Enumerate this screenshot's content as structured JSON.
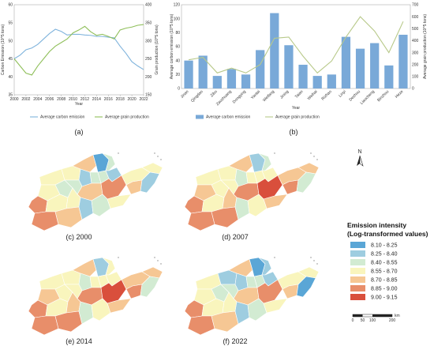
{
  "chart_data": [
    {
      "type": "line",
      "panel": "(a)",
      "x": [
        2000,
        2001,
        2002,
        2003,
        2004,
        2005,
        2006,
        2007,
        2008,
        2009,
        2010,
        2011,
        2012,
        2013,
        2014,
        2015,
        2016,
        2017,
        2018,
        2019,
        2020,
        2021,
        2022
      ],
      "xticks": [
        "2000",
        "2002",
        "2004",
        "2006",
        "2008",
        "2010",
        "2012",
        "2014",
        "2016",
        "2018",
        "2020",
        "2022"
      ],
      "xlabel": "Year",
      "ylabel": "Carbon Emission (10^5 tons)",
      "ylabel_right": "Grain production (10^5 tons)",
      "ylim": [
        35,
        60
      ],
      "yticks": [
        "35",
        "40",
        "45",
        "50",
        "55",
        "60"
      ],
      "ylim_right": [
        150,
        400
      ],
      "yticks_right": [
        "150",
        "200",
        "250",
        "300",
        "350",
        "400"
      ],
      "series": [
        {
          "name": "Average carbon emission",
          "axis": "left",
          "color": "#7fb3dc",
          "values": [
            45,
            46,
            47.5,
            48,
            49,
            50.5,
            52,
            53.2,
            52.6,
            51.6,
            51.8,
            51.8,
            51.6,
            51.5,
            51.2,
            51.2,
            51,
            50.8,
            48.5,
            46.5,
            44.2,
            43,
            42
          ]
        },
        {
          "name": "Average grain production",
          "axis": "right",
          "color": "#8fbf5a",
          "values": [
            250,
            230,
            210,
            205,
            230,
            250,
            270,
            285,
            295,
            305,
            322,
            330,
            340,
            325,
            315,
            318,
            312,
            305,
            330,
            335,
            338,
            343,
            345
          ]
        }
      ]
    },
    {
      "type": "bar",
      "panel": "(b)",
      "categories": [
        "Jinan",
        "Qingdao",
        "Zibo",
        "Zaozhuang",
        "Dongying",
        "Yantai",
        "Weifang",
        "Jining",
        "Taian",
        "Weihai",
        "Rizhao",
        "Linyi",
        "Dezhou",
        "Liaocheng",
        "Binzhou",
        "Heze"
      ],
      "xlabel": "Year",
      "ylabel": "Average carbon emission (10^5 tons)",
      "ylabel_right": "Average grain production (10^5 tons)",
      "ylim": [
        0,
        120
      ],
      "yticks": [
        "0",
        "20",
        "40",
        "60",
        "80",
        "100",
        "120"
      ],
      "ylim_right": [
        0,
        700
      ],
      "yticks_right": [
        "0",
        "100",
        "200",
        "300",
        "400",
        "500",
        "600",
        "700"
      ],
      "series": [
        {
          "name": "Average carbon emission",
          "kind": "bar",
          "axis": "left",
          "color": "#79a9d8",
          "values": [
            40,
            47,
            18,
            28,
            20,
            55,
            108,
            62,
            34,
            18,
            20,
            74,
            57,
            65,
            33,
            77
          ]
        },
        {
          "name": "Average grain production",
          "kind": "line",
          "axis": "right",
          "color": "#b8c98a",
          "values": [
            240,
            260,
            130,
            170,
            130,
            200,
            420,
            430,
            270,
            130,
            230,
            430,
            600,
            480,
            300,
            560
          ]
        }
      ]
    }
  ],
  "captions": {
    "a": "(a)",
    "b": "(b)",
    "c": "(c) 2000",
    "d": "(d) 2007",
    "e": "(e) 2014",
    "f": "(f) 2022"
  },
  "maps": {
    "c": [
      3,
      3,
      4,
      0,
      2,
      1,
      2,
      2,
      1,
      3,
      2,
      2,
      4,
      5,
      3,
      3,
      4,
      1,
      5,
      3,
      3,
      5,
      4,
      1,
      2,
      3
    ],
    "d": [
      3,
      3,
      4,
      1,
      2,
      2,
      3,
      3,
      3,
      4,
      3,
      3,
      5,
      6,
      4,
      4,
      5,
      2,
      5,
      3,
      4,
      5,
      5,
      2,
      3,
      4
    ],
    "e": [
      3,
      3,
      4,
      1,
      3,
      2,
      3,
      3,
      3,
      4,
      3,
      3,
      5,
      6,
      4,
      4,
      5,
      2,
      5,
      3,
      4,
      5,
      5,
      2,
      3,
      4
    ],
    "f": [
      3,
      1,
      4,
      0,
      1,
      1,
      2,
      2,
      1,
      3,
      2,
      2,
      4,
      5,
      3,
      3,
      4,
      0,
      5,
      3,
      3,
      5,
      4,
      1,
      2,
      3
    ]
  },
  "legend": {
    "title_line1": "Emission intensity",
    "title_line2": "(Log-transformed values)",
    "items": [
      {
        "label": "8.10 - 8.25",
        "color": "#5aa6d6"
      },
      {
        "label": "8.25 - 8.40",
        "color": "#9ecde0"
      },
      {
        "label": "8.40 - 8.55",
        "color": "#d2ebd2"
      },
      {
        "label": "8.55 - 8.70",
        "color": "#f9f5bd"
      },
      {
        "label": "8.70 - 8.85",
        "color": "#f6c794"
      },
      {
        "label": "8.85 - 9.00",
        "color": "#e88e6a"
      },
      {
        "label": "9.00 - 9.15",
        "color": "#d94f3c"
      }
    ]
  },
  "north_label": "N",
  "scale_bar": {
    "ticks": [
      "0",
      "50",
      "100",
      "200"
    ],
    "unit": "km"
  }
}
